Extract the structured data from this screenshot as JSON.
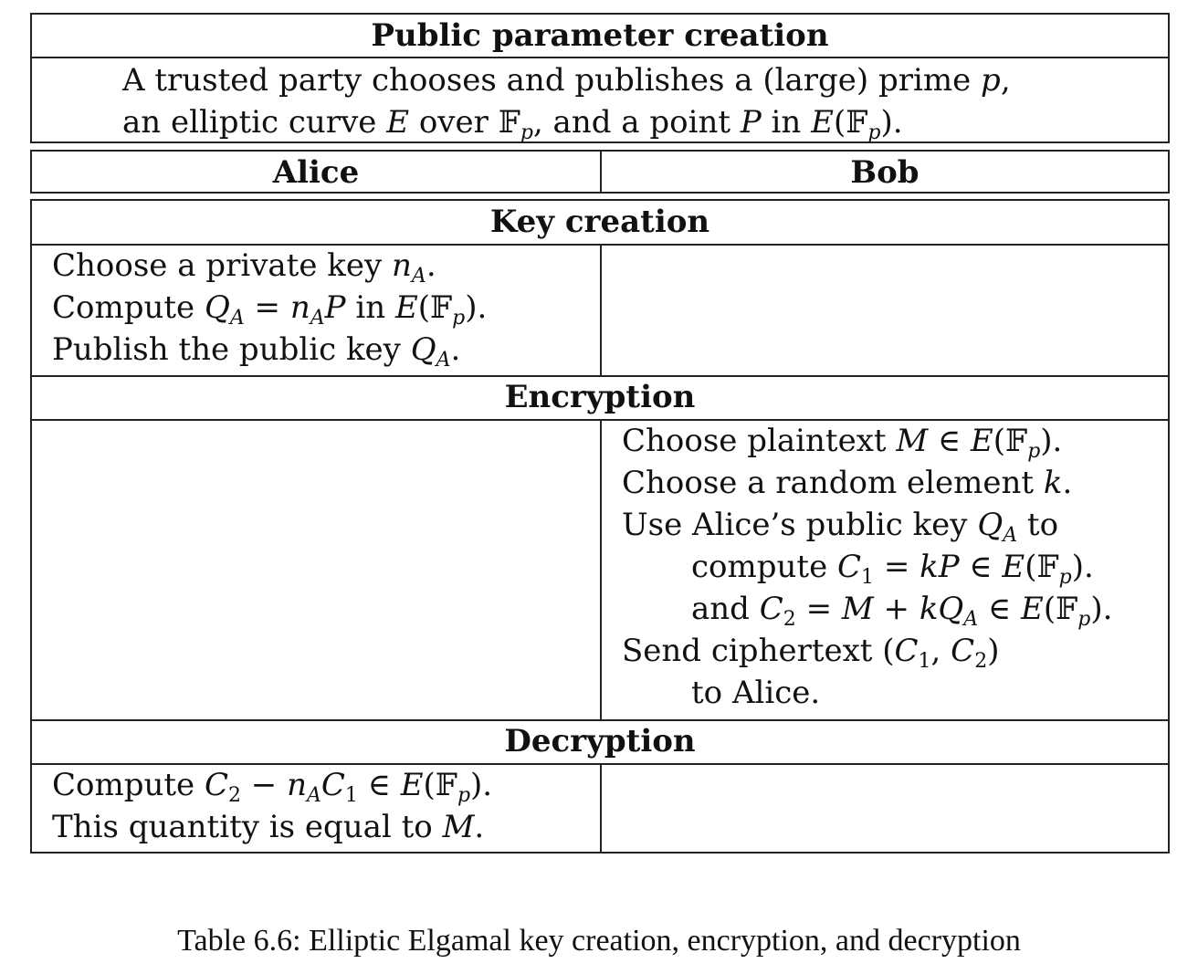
{
  "table": {
    "public_header": "Public parameter creation",
    "public_text": {
      "a": "A trusted party chooses and publishes a (large) prime ",
      "p": "p",
      "b": ",",
      "c": "an elliptic curve ",
      "E": "E",
      "d": " over ",
      "Fp": "𝔽",
      "p_sub": "p",
      "e": ", and a point ",
      "P": "P",
      "f": " in ",
      "EFp": "E",
      "g": "(𝔽",
      "h": ")."
    },
    "alice_header": "Alice",
    "bob_header": "Bob",
    "key_creation_header": "Key creation",
    "encryption_header": "Encryption",
    "decryption_header": "Decryption",
    "alice_key": {
      "l1a": "Choose a private key ",
      "l1m": "n",
      "l1s": "A",
      "l1e": ".",
      "l2a": "Compute ",
      "l2m1": "Q",
      "l2s1": "A",
      "l2b": " = ",
      "l2m2": "n",
      "l2s2": "A",
      "l2m3": "P",
      "l2c": " in ",
      "l2m4": "E",
      "l2d": "(𝔽",
      "l2s3": "p",
      "l2e": ").",
      "l3a": "Publish the public key ",
      "l3m": "Q",
      "l3s": "A",
      "l3e": "."
    },
    "bob_enc": {
      "l1a": "Choose plaintext ",
      "l1m": "M",
      "l1b": " ∈ ",
      "l1m2": "E",
      "l1c": "(𝔽",
      "l1s": "p",
      "l1d": ").",
      "l2a": "Choose a random element ",
      "l2m": "k",
      "l2e": ".",
      "l3a": "Use Alice’s public key ",
      "l3m": "Q",
      "l3s": "A",
      "l3e": " to",
      "l4a": "compute ",
      "l4m1": "C",
      "l4s1": "1",
      "l4b": " = ",
      "l4m2": "kP",
      "l4c": " ∈ ",
      "l4m3": "E",
      "l4d": "(𝔽",
      "l4s2": "p",
      "l4e": ").",
      "l5a": "and ",
      "l5m1": "C",
      "l5s1": "2",
      "l5b": " = ",
      "l5m2": "M",
      "l5c": " + ",
      "l5m3": "kQ",
      "l5s2": "A",
      "l5d": " ∈ ",
      "l5m4": "E",
      "l5e": "(𝔽",
      "l5s3": "p",
      "l5f": ").",
      "l6a": "Send ciphertext (",
      "l6m1": "C",
      "l6s1": "1",
      "l6b": ", ",
      "l6m2": "C",
      "l6s2": "2",
      "l6c": ")",
      "l7a": "to Alice."
    },
    "alice_dec": {
      "l1a": "Compute ",
      "l1m1": "C",
      "l1s1": "2",
      "l1b": " − ",
      "l1m2": "n",
      "l1s2": "A",
      "l1m3": "C",
      "l1s3": "1",
      "l1c": " ∈ ",
      "l1m4": "E",
      "l1d": "(𝔽",
      "l1s4": "p",
      "l1e": ").",
      "l2a": "This quantity is equal to ",
      "l2m": "M",
      "l2e": "."
    }
  },
  "caption": "Table 6.6: Elliptic Elgamal key creation, encryption, and decryption"
}
